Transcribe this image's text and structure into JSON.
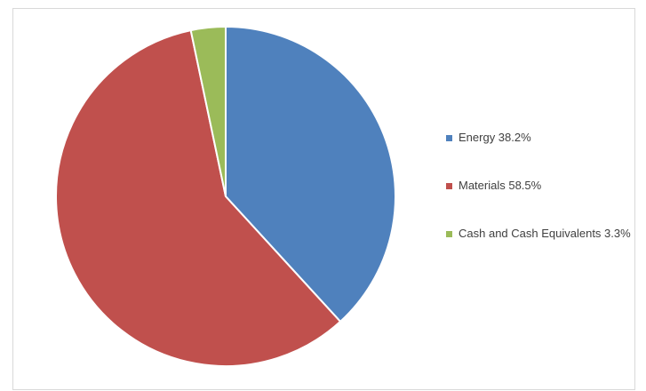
{
  "chart_data": {
    "type": "pie",
    "title": "",
    "legend_position": "right",
    "slices": [
      {
        "name": "Energy",
        "value": 38.2,
        "label": "Energy 38.2%",
        "color": "#4f81bd"
      },
      {
        "name": "Materials",
        "value": 58.5,
        "label": "Materials 58.5%",
        "color": "#c0504d"
      },
      {
        "name": "Cash and Cash Equivalents",
        "value": 3.3,
        "label": "Cash and Cash Equivalents 3.3%",
        "color": "#9bbb59"
      }
    ]
  }
}
